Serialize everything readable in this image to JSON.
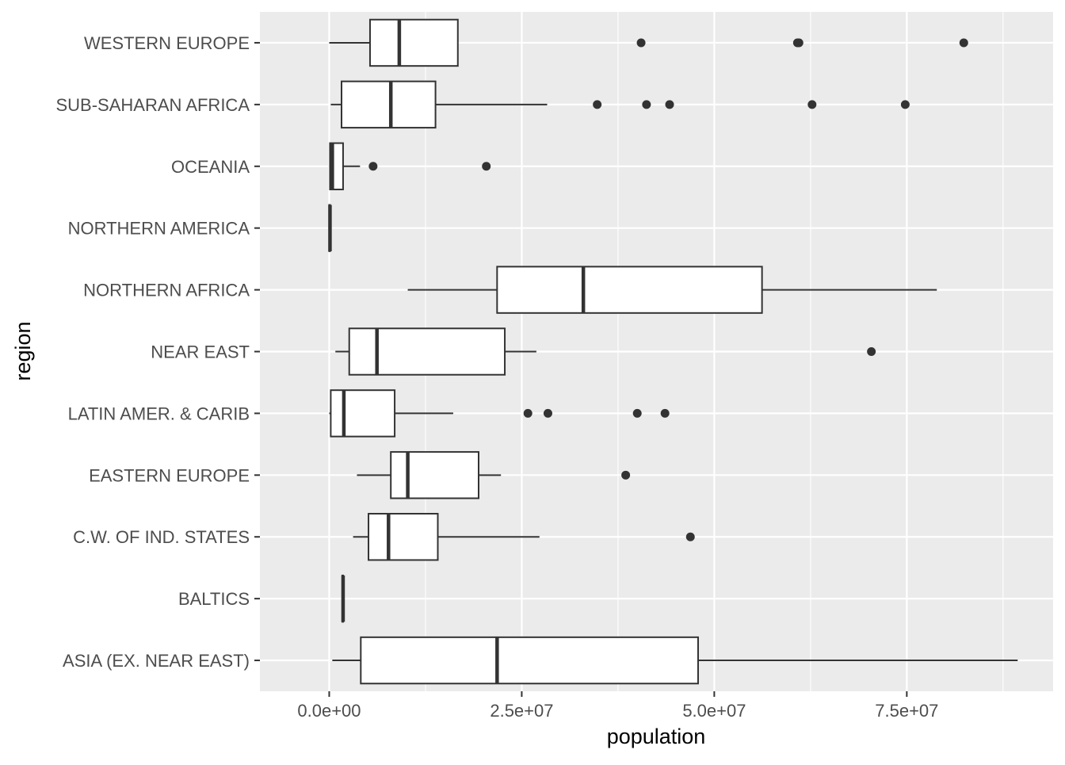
{
  "chart_data": {
    "type": "boxplot",
    "orientation": "horizontal",
    "title": "",
    "xlabel": "population",
    "ylabel": "region",
    "xlim": [
      -9000000,
      94000000
    ],
    "x_ticks": [
      {
        "value": 0,
        "label": "0.0e+00"
      },
      {
        "value": 25000000,
        "label": "2.5e+07"
      },
      {
        "value": 50000000,
        "label": "5.0e+07"
      },
      {
        "value": 75000000,
        "label": "7.5e+07"
      }
    ],
    "x_minor_ticks": [
      12500000,
      37500000,
      62500000,
      87500000
    ],
    "grid": true,
    "legend": "none",
    "colors": {
      "panel_background": "#ebebeb",
      "grid": "#ffffff",
      "box_fill": "#ffffff",
      "box_stroke": "#333333",
      "outlier": "#333333"
    },
    "categories": [
      "ASIA (EX. NEAR EAST)",
      "BALTICS",
      "C.W. OF IND. STATES",
      "EASTERN EUROPE",
      "LATIN AMER. & CARIB",
      "NEAR EAST",
      "NORTHERN AFRICA",
      "NORTHERN AMERICA",
      "OCEANIA",
      "SUB-SAHARAN AFRICA",
      "WESTERN EUROPE"
    ],
    "boxes": [
      {
        "region": "ASIA (EX. NEAR EAST)",
        "whisker_low": 400000,
        "q1": 4100000,
        "median": 21800000,
        "q3": 47900000,
        "whisker_high": 89400000,
        "outliers": []
      },
      {
        "region": "BALTICS",
        "whisker_low": 1700000,
        "q1": 1700000,
        "median": 1800000,
        "q3": 1800000,
        "whisker_high": 1800000,
        "outliers": []
      },
      {
        "region": "C.W. OF IND. STATES",
        "whisker_low": 3100000,
        "q1": 5100000,
        "median": 7700000,
        "q3": 14100000,
        "whisker_high": 27300000,
        "outliers": [
          46900000
        ]
      },
      {
        "region": "EASTERN EUROPE",
        "whisker_low": 3600000,
        "q1": 8000000,
        "median": 10200000,
        "q3": 19400000,
        "whisker_high": 22300000,
        "outliers": [
          38500000
        ]
      },
      {
        "region": "LATIN AMER. & CARIB",
        "whisker_low": 0,
        "q1": 200000,
        "median": 1900000,
        "q3": 8500000,
        "whisker_high": 16100000,
        "outliers": [
          25800000,
          28400000,
          40000000,
          43600000
        ]
      },
      {
        "region": "NEAR EAST",
        "whisker_low": 800000,
        "q1": 2600000,
        "median": 6200000,
        "q3": 22800000,
        "whisker_high": 26900000,
        "outliers": [
          70400000
        ]
      },
      {
        "region": "NORTHERN AFRICA",
        "whisker_low": 10200000,
        "q1": 21800000,
        "median": 33000000,
        "q3": 56200000,
        "whisker_high": 78900000,
        "outliers": []
      },
      {
        "region": "NORTHERN AMERICA",
        "whisker_low": 0,
        "q1": 0,
        "median": 100000,
        "q3": 100000,
        "whisker_high": 100000,
        "outliers": []
      },
      {
        "region": "OCEANIA",
        "whisker_low": 0,
        "q1": 100000,
        "median": 400000,
        "q3": 1800000,
        "whisker_high": 4000000,
        "outliers": [
          5700000,
          20400000
        ]
      },
      {
        "region": "SUB-SAHARAN AFRICA",
        "whisker_low": 200000,
        "q1": 1600000,
        "median": 8000000,
        "q3": 13800000,
        "whisker_high": 28300000,
        "outliers": [
          34800000,
          41200000,
          44200000,
          62700000,
          74800000
        ]
      },
      {
        "region": "WESTERN EUROPE",
        "whisker_low": 0,
        "q1": 5300000,
        "median": 9100000,
        "q3": 16700000,
        "whisker_high": 16700000,
        "outliers": [
          40500000,
          60800000,
          61000000,
          82400000
        ]
      }
    ]
  }
}
